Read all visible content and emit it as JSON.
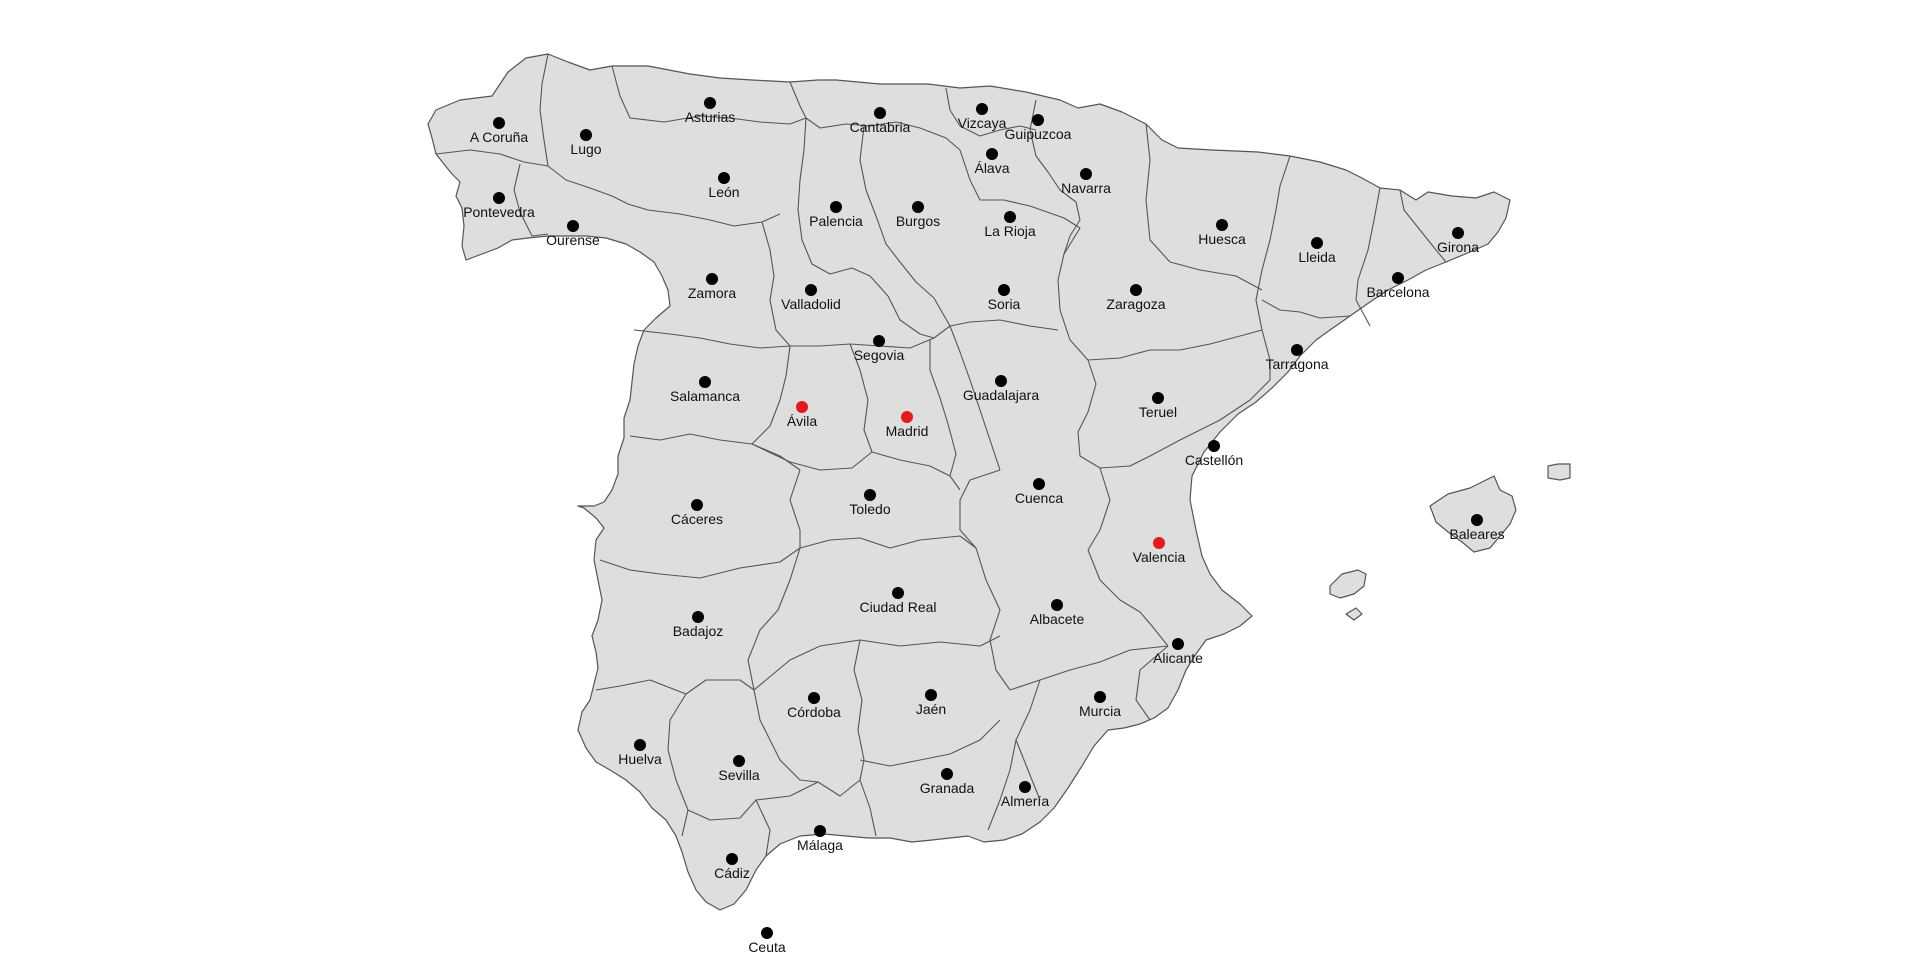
{
  "colors": {
    "land": "#dedede",
    "border": "#555555",
    "marker_default": "#000000",
    "marker_highlight": "#e41a1c"
  },
  "cities": [
    {
      "name": "A Coruña",
      "highlight": false
    },
    {
      "name": "Lugo",
      "highlight": false
    },
    {
      "name": "Asturias",
      "highlight": false
    },
    {
      "name": "Cantabria",
      "highlight": false
    },
    {
      "name": "Vizcaya",
      "highlight": false
    },
    {
      "name": "Guipuzcoa",
      "highlight": false
    },
    {
      "name": "Álava",
      "highlight": false
    },
    {
      "name": "Navarra",
      "highlight": false
    },
    {
      "name": "León",
      "highlight": false
    },
    {
      "name": "Pontevedra",
      "highlight": false
    },
    {
      "name": "Ourense",
      "highlight": false
    },
    {
      "name": "Palencia",
      "highlight": false
    },
    {
      "name": "Burgos",
      "highlight": false
    },
    {
      "name": "La Rioja",
      "highlight": false
    },
    {
      "name": "Huesca",
      "highlight": false
    },
    {
      "name": "Lleida",
      "highlight": false
    },
    {
      "name": "Girona",
      "highlight": false
    },
    {
      "name": "Barcelona",
      "highlight": false
    },
    {
      "name": "Zamora",
      "highlight": false
    },
    {
      "name": "Valladolid",
      "highlight": false
    },
    {
      "name": "Soria",
      "highlight": false
    },
    {
      "name": "Zaragoza",
      "highlight": false
    },
    {
      "name": "Tarragona",
      "highlight": false
    },
    {
      "name": "Segovia",
      "highlight": false
    },
    {
      "name": "Salamanca",
      "highlight": false
    },
    {
      "name": "Ávila",
      "highlight": true
    },
    {
      "name": "Madrid",
      "highlight": true
    },
    {
      "name": "Guadalajara",
      "highlight": false
    },
    {
      "name": "Teruel",
      "highlight": false
    },
    {
      "name": "Castellón",
      "highlight": false
    },
    {
      "name": "Cáceres",
      "highlight": false
    },
    {
      "name": "Toledo",
      "highlight": false
    },
    {
      "name": "Cuenca",
      "highlight": false
    },
    {
      "name": "Valencia",
      "highlight": true
    },
    {
      "name": "Baleares",
      "highlight": false
    },
    {
      "name": "Badajoz",
      "highlight": false
    },
    {
      "name": "Ciudad Real",
      "highlight": false
    },
    {
      "name": "Albacete",
      "highlight": false
    },
    {
      "name": "Alicante",
      "highlight": false
    },
    {
      "name": "Córdoba",
      "highlight": false
    },
    {
      "name": "Jaén",
      "highlight": false
    },
    {
      "name": "Murcia",
      "highlight": false
    },
    {
      "name": "Huelva",
      "highlight": false
    },
    {
      "name": "Sevilla",
      "highlight": false
    },
    {
      "name": "Granada",
      "highlight": false
    },
    {
      "name": "Almería",
      "highlight": false
    },
    {
      "name": "Málaga",
      "highlight": false
    },
    {
      "name": "Cádiz",
      "highlight": false
    },
    {
      "name": "Ceuta",
      "highlight": false
    }
  ]
}
